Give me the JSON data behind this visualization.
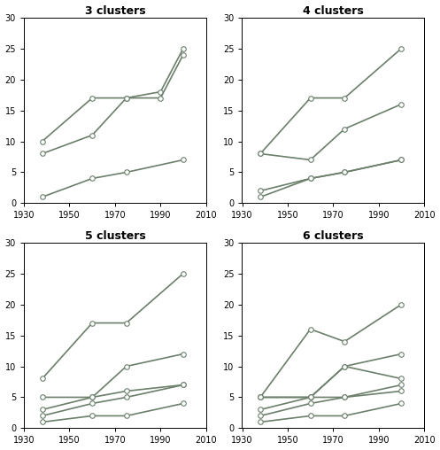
{
  "x_values": [
    1938,
    1960,
    1975,
    1990,
    2000
  ],
  "panel_titles": [
    "3 clusters",
    "4 clusters",
    "5 clusters",
    "6 clusters"
  ],
  "series": {
    "3": [
      [
        10,
        17,
        17,
        18,
        25
      ],
      [
        8,
        11,
        17,
        17,
        24
      ],
      [
        1,
        4,
        5,
        null,
        7
      ]
    ],
    "4": [
      [
        8,
        17,
        17,
        null,
        25
      ],
      [
        8,
        7,
        12,
        null,
        16
      ],
      [
        2,
        4,
        5,
        null,
        7
      ],
      [
        1,
        4,
        5,
        null,
        7
      ]
    ],
    "5": [
      [
        8,
        17,
        17,
        null,
        25
      ],
      [
        5,
        5,
        10,
        null,
        12
      ],
      [
        3,
        5,
        6,
        null,
        7
      ],
      [
        2,
        4,
        5,
        null,
        7
      ],
      [
        1,
        2,
        2,
        null,
        4
      ]
    ],
    "6": [
      [
        5,
        16,
        14,
        null,
        20
      ],
      [
        5,
        5,
        10,
        null,
        12
      ],
      [
        5,
        5,
        10,
        null,
        8
      ],
      [
        3,
        5,
        5,
        null,
        7
      ],
      [
        2,
        4,
        5,
        null,
        6
      ],
      [
        1,
        2,
        2,
        null,
        4
      ]
    ]
  },
  "x_ticks": [
    1930,
    1950,
    1970,
    1990,
    2010
  ],
  "ylim": [
    0,
    30
  ],
  "yticks": [
    0,
    5,
    10,
    15,
    20,
    25,
    30
  ],
  "line_color": "#6b7f6b",
  "marker": "o",
  "markerfacecolor": "white",
  "markersize": 4,
  "linewidth": 1.2,
  "bg_color": "white",
  "title_fontsize": 9,
  "tick_labelsize": 7
}
